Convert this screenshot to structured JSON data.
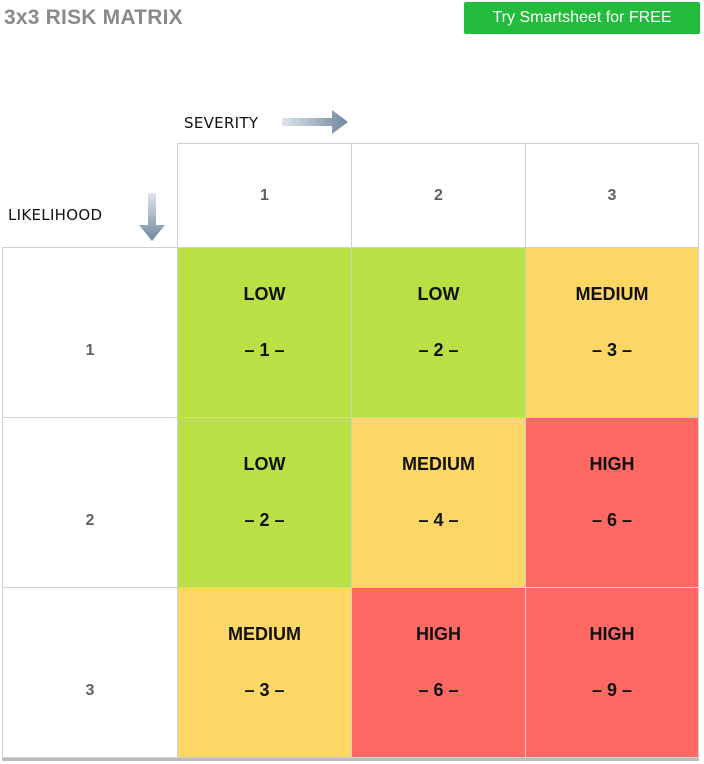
{
  "title": "3x3 RISK MATRIX",
  "cta_label": "Try Smartsheet for FREE",
  "axes": {
    "severity_label": "SEVERITY",
    "likelihood_label": "LIKELIHOOD"
  },
  "severity_headers": [
    "1",
    "2",
    "3"
  ],
  "likelihood_headers": [
    "1",
    "2",
    "3"
  ],
  "colors": {
    "low": "#b9e045",
    "medium": "#fdd766",
    "high": "#fe6a63",
    "cta": "#22bb3b",
    "arrow": "#7a8ea6"
  },
  "matrix": [
    [
      {
        "level": "LOW",
        "score": "– 1 –",
        "tier": "low"
      },
      {
        "level": "LOW",
        "score": "– 2 –",
        "tier": "low"
      },
      {
        "level": "MEDIUM",
        "score": "– 3 –",
        "tier": "medium"
      }
    ],
    [
      {
        "level": "LOW",
        "score": "– 2 –",
        "tier": "low"
      },
      {
        "level": "MEDIUM",
        "score": "– 4 –",
        "tier": "medium"
      },
      {
        "level": "HIGH",
        "score": "– 6 –",
        "tier": "high"
      }
    ],
    [
      {
        "level": "MEDIUM",
        "score": "– 3 –",
        "tier": "medium"
      },
      {
        "level": "HIGH",
        "score": "– 6 –",
        "tier": "high"
      },
      {
        "level": "HIGH",
        "score": "– 9 –",
        "tier": "high"
      }
    ]
  ]
}
